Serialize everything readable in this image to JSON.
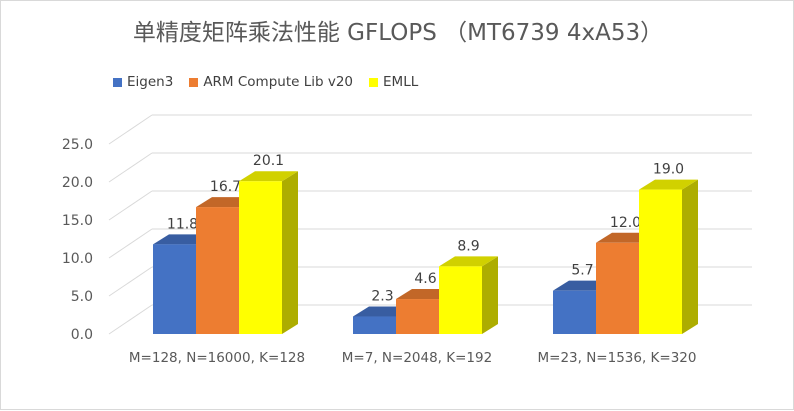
{
  "chart_data": {
    "type": "bar",
    "title": "单精度矩阵乘法性能 GFLOPS （MT6739 4xA53）",
    "categories": [
      "M=128, N=16000, K=128",
      "M=7, N=2048, K=192",
      "M=23, N=1536, K=320"
    ],
    "series": [
      {
        "name": "Eigen3",
        "values": [
          11.8,
          2.3,
          5.7
        ],
        "color": "#4472c4"
      },
      {
        "name": "ARM Compute Lib v20",
        "values": [
          16.7,
          4.6,
          12.0
        ],
        "color": "#ed7d31"
      },
      {
        "name": "EMLL",
        "values": [
          20.1,
          8.9,
          19.0
        ],
        "color": "#ffff00"
      }
    ],
    "data_labels": [
      [
        "11.8",
        "2.3",
        "5.7"
      ],
      [
        "16.7",
        "4.6",
        "12.0"
      ],
      [
        "20.1",
        "8.9",
        "19.0"
      ]
    ],
    "y_ticks": [
      "0.0",
      "5.0",
      "10.0",
      "15.0",
      "20.0",
      "25.0"
    ],
    "ylim": [
      0,
      25
    ],
    "xlabel": "",
    "ylabel": "",
    "grid": true,
    "legend_position": "top-left",
    "style": "3d-clustered-column"
  }
}
